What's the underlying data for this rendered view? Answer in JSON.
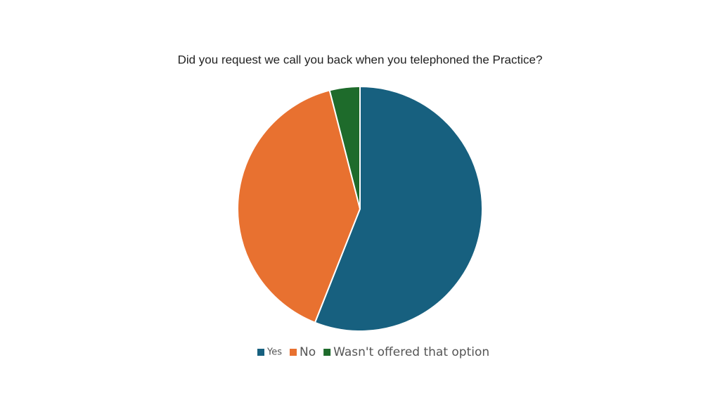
{
  "chart_data": {
    "type": "pie",
    "title": "Did you request we call you back when you telephoned the Practice?",
    "categories": [
      "Yes",
      "No",
      "Wasn't offered that option"
    ],
    "values": [
      56,
      40,
      4
    ],
    "colors": [
      "#17607f",
      "#e87130",
      "#1e6b2b"
    ],
    "legend": "bottom"
  }
}
